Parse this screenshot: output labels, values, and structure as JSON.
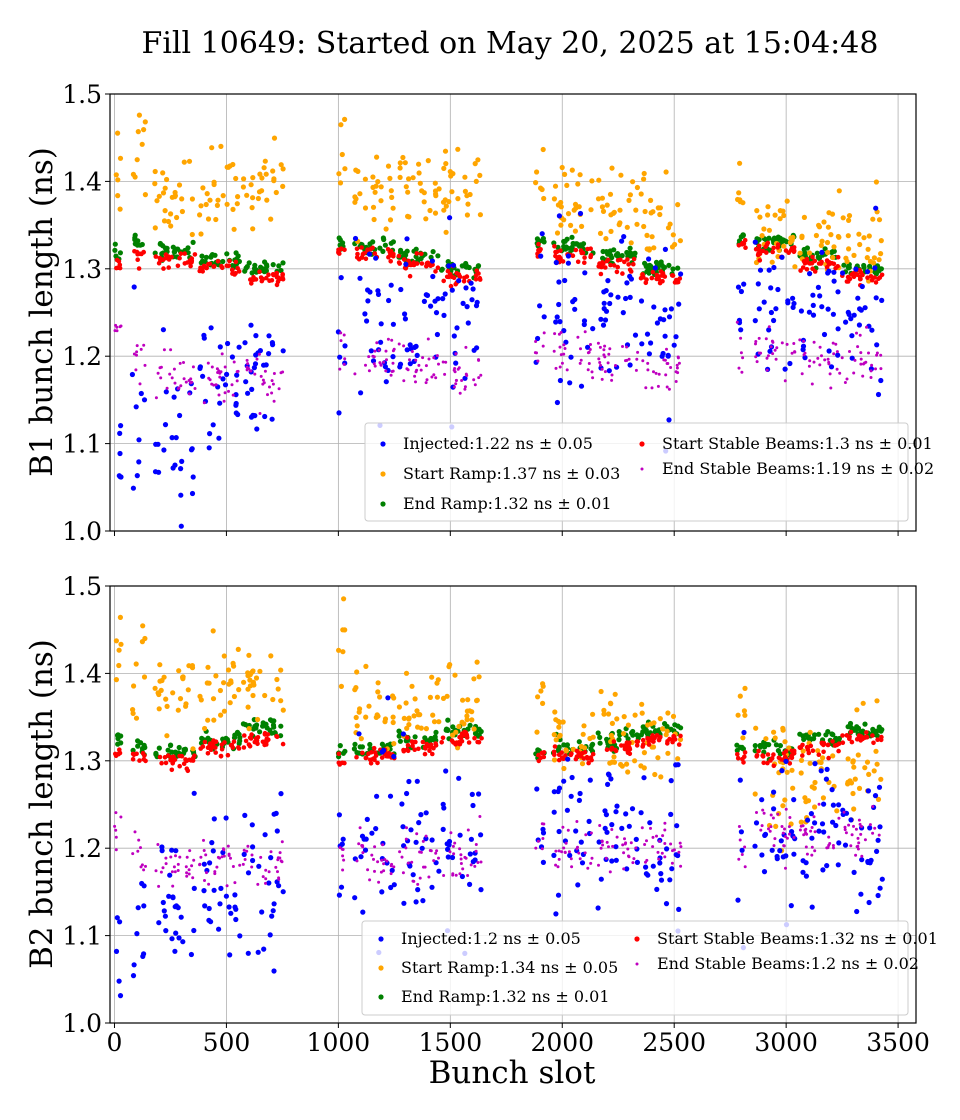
{
  "title": "Fill 10649: Started on May 20, 2025 at 15:04:48",
  "colors": {
    "injected": "#0000ff",
    "start_ramp": "#ffa500",
    "end_ramp": "#008000",
    "start_stable": "#ff0000",
    "end_stable": "#bf00bf",
    "grid": "#b0b0b0",
    "frame": "#000000"
  },
  "chart_data": [
    {
      "type": "scatter",
      "ylabel": "B1 bunch length (ns)",
      "xlabel": "",
      "xlim": [
        -20,
        3580
      ],
      "ylim": [
        1.0,
        1.5
      ],
      "xticks": [
        0,
        500,
        1000,
        1500,
        2000,
        2500,
        3000,
        3500
      ],
      "xtick_labels_shown": false,
      "yticks": [
        "1.0",
        "1.1",
        "1.2",
        "1.3",
        "1.4",
        "1.5"
      ],
      "grid": true,
      "legend_position": "lower-right",
      "series": [
        {
          "key": "injected",
          "name": "Injected:1.22 ns ± 0.05",
          "mean": 1.22,
          "std": 0.05
        },
        {
          "key": "start_ramp",
          "name": "Start Ramp:1.37 ns ± 0.03",
          "mean": 1.37,
          "std": 0.03
        },
        {
          "key": "end_ramp",
          "name": "End Ramp:1.32 ns ± 0.01",
          "mean": 1.32,
          "std": 0.01
        },
        {
          "key": "start_stable",
          "name": "Start Stable Beams:1.3 ns ± 0.01",
          "mean": 1.3,
          "std": 0.01
        },
        {
          "key": "end_stable",
          "name": "End Stable Beams:1.19 ns ± 0.02",
          "mean": 1.19,
          "std": 0.02
        }
      ],
      "trains": [
        {
          "x0": 0,
          "x1": 30,
          "injected": 1.09,
          "start_ramp": 1.43,
          "end_ramp": 1.315,
          "start_stable": 1.305,
          "end_stable": 1.23
        },
        {
          "x0": 80,
          "x1": 140,
          "injected": 1.13,
          "start_ramp": 1.42,
          "end_ramp": 1.33,
          "start_stable": 1.315,
          "end_stable": 1.2
        },
        {
          "x0": 180,
          "x1": 360,
          "injected": 1.12,
          "start_ramp": 1.38,
          "end_ramp": 1.32,
          "start_stable": 1.31,
          "end_stable": 1.18
        },
        {
          "x0": 380,
          "x1": 560,
          "injected": 1.16,
          "start_ramp": 1.39,
          "end_ramp": 1.31,
          "start_stable": 1.3,
          "end_stable": 1.175
        },
        {
          "x0": 575,
          "x1": 755,
          "injected": 1.19,
          "start_ramp": 1.4,
          "end_ramp": 1.3,
          "start_stable": 1.29,
          "end_stable": 1.18
        },
        {
          "x0": 1000,
          "x1": 1030,
          "injected": 1.25,
          "start_ramp": 1.43,
          "end_ramp": 1.33,
          "start_stable": 1.32,
          "end_stable": 1.21
        },
        {
          "x0": 1070,
          "x1": 1250,
          "injected": 1.23,
          "start_ramp": 1.39,
          "end_ramp": 1.325,
          "start_stable": 1.315,
          "end_stable": 1.195
        },
        {
          "x0": 1270,
          "x1": 1450,
          "injected": 1.24,
          "start_ramp": 1.39,
          "end_ramp": 1.315,
          "start_stable": 1.305,
          "end_stable": 1.19
        },
        {
          "x0": 1460,
          "x1": 1640,
          "injected": 1.24,
          "start_ramp": 1.39,
          "end_ramp": 1.3,
          "start_stable": 1.29,
          "end_stable": 1.18
        },
        {
          "x0": 1880,
          "x1": 1920,
          "injected": 1.24,
          "start_ramp": 1.4,
          "end_ramp": 1.33,
          "start_stable": 1.32,
          "end_stable": 1.21
        },
        {
          "x0": 1960,
          "x1": 2140,
          "injected": 1.25,
          "start_ramp": 1.37,
          "end_ramp": 1.325,
          "start_stable": 1.315,
          "end_stable": 1.2
        },
        {
          "x0": 2160,
          "x1": 2340,
          "injected": 1.25,
          "start_ramp": 1.37,
          "end_ramp": 1.315,
          "start_stable": 1.305,
          "end_stable": 1.195
        },
        {
          "x0": 2350,
          "x1": 2530,
          "injected": 1.24,
          "start_ramp": 1.36,
          "end_ramp": 1.3,
          "start_stable": 1.29,
          "end_stable": 1.185
        },
        {
          "x0": 2780,
          "x1": 2820,
          "injected": 1.27,
          "start_ramp": 1.37,
          "end_ramp": 1.335,
          "start_stable": 1.325,
          "end_stable": 1.215
        },
        {
          "x0": 2860,
          "x1": 3040,
          "injected": 1.25,
          "start_ramp": 1.34,
          "end_ramp": 1.33,
          "start_stable": 1.32,
          "end_stable": 1.21
        },
        {
          "x0": 3060,
          "x1": 3240,
          "injected": 1.26,
          "start_ramp": 1.335,
          "end_ramp": 1.315,
          "start_stable": 1.305,
          "end_stable": 1.2
        },
        {
          "x0": 3250,
          "x1": 3430,
          "injected": 1.25,
          "start_ramp": 1.33,
          "end_ramp": 1.3,
          "start_stable": 1.29,
          "end_stable": 1.195
        }
      ]
    },
    {
      "type": "scatter",
      "ylabel": "B2 bunch length (ns)",
      "xlabel": "Bunch slot",
      "xlim": [
        -20,
        3580
      ],
      "ylim": [
        1.0,
        1.5
      ],
      "xticks": [
        0,
        500,
        1000,
        1500,
        2000,
        2500,
        3000,
        3500
      ],
      "xtick_labels_shown": true,
      "yticks": [
        "1.0",
        "1.1",
        "1.2",
        "1.3",
        "1.4",
        "1.5"
      ],
      "grid": true,
      "legend_position": "lower-right",
      "series": [
        {
          "key": "injected",
          "name": "Injected:1.2 ns ± 0.05",
          "mean": 1.2,
          "std": 0.05
        },
        {
          "key": "start_ramp",
          "name": "Start Ramp:1.34 ns ± 0.05",
          "mean": 1.34,
          "std": 0.05
        },
        {
          "key": "end_ramp",
          "name": "End Ramp:1.32 ns ± 0.01",
          "mean": 1.32,
          "std": 0.01
        },
        {
          "key": "start_stable",
          "name": "Start Stable Beams:1.32 ns ± 0.01",
          "mean": 1.32,
          "std": 0.01
        },
        {
          "key": "end_stable",
          "name": "End Stable Beams:1.2 ns ± 0.02",
          "mean": 1.2,
          "std": 0.02
        }
      ],
      "trains": [
        {
          "x0": 0,
          "x1": 30,
          "injected": 1.08,
          "start_ramp": 1.41,
          "end_ramp": 1.325,
          "start_stable": 1.31,
          "end_stable": 1.23
        },
        {
          "x0": 80,
          "x1": 140,
          "injected": 1.12,
          "start_ramp": 1.41,
          "end_ramp": 1.315,
          "start_stable": 1.305,
          "end_stable": 1.19
        },
        {
          "x0": 180,
          "x1": 360,
          "injected": 1.14,
          "start_ramp": 1.37,
          "end_ramp": 1.31,
          "start_stable": 1.3,
          "end_stable": 1.18
        },
        {
          "x0": 380,
          "x1": 560,
          "injected": 1.15,
          "start_ramp": 1.38,
          "end_ramp": 1.325,
          "start_stable": 1.315,
          "end_stable": 1.185
        },
        {
          "x0": 575,
          "x1": 755,
          "injected": 1.17,
          "start_ramp": 1.39,
          "end_ramp": 1.34,
          "start_stable": 1.325,
          "end_stable": 1.18
        },
        {
          "x0": 1000,
          "x1": 1030,
          "injected": 1.2,
          "start_ramp": 1.43,
          "end_ramp": 1.31,
          "start_stable": 1.3,
          "end_stable": 1.19
        },
        {
          "x0": 1070,
          "x1": 1250,
          "injected": 1.2,
          "start_ramp": 1.36,
          "end_ramp": 1.315,
          "start_stable": 1.305,
          "end_stable": 1.19
        },
        {
          "x0": 1270,
          "x1": 1450,
          "injected": 1.2,
          "start_ramp": 1.36,
          "end_ramp": 1.325,
          "start_stable": 1.315,
          "end_stable": 1.19
        },
        {
          "x0": 1460,
          "x1": 1640,
          "injected": 1.2,
          "start_ramp": 1.36,
          "end_ramp": 1.335,
          "start_stable": 1.325,
          "end_stable": 1.19
        },
        {
          "x0": 1880,
          "x1": 1920,
          "injected": 1.21,
          "start_ramp": 1.37,
          "end_ramp": 1.31,
          "start_stable": 1.305,
          "end_stable": 1.21
        },
        {
          "x0": 1960,
          "x1": 2140,
          "injected": 1.22,
          "start_ramp": 1.33,
          "end_ramp": 1.315,
          "start_stable": 1.305,
          "end_stable": 1.2
        },
        {
          "x0": 2160,
          "x1": 2340,
          "injected": 1.22,
          "start_ramp": 1.33,
          "end_ramp": 1.325,
          "start_stable": 1.315,
          "end_stable": 1.2
        },
        {
          "x0": 2350,
          "x1": 2530,
          "injected": 1.22,
          "start_ramp": 1.33,
          "end_ramp": 1.335,
          "start_stable": 1.325,
          "end_stable": 1.2
        },
        {
          "x0": 2780,
          "x1": 2820,
          "injected": 1.22,
          "start_ramp": 1.35,
          "end_ramp": 1.315,
          "start_stable": 1.305,
          "end_stable": 1.21
        },
        {
          "x0": 2860,
          "x1": 3040,
          "injected": 1.21,
          "start_ramp": 1.28,
          "end_ramp": 1.315,
          "start_stable": 1.305,
          "end_stable": 1.22
        },
        {
          "x0": 3060,
          "x1": 3240,
          "injected": 1.22,
          "start_ramp": 1.28,
          "end_ramp": 1.325,
          "start_stable": 1.315,
          "end_stable": 1.22
        },
        {
          "x0": 3250,
          "x1": 3430,
          "injected": 1.21,
          "start_ramp": 1.28,
          "end_ramp": 1.335,
          "start_stable": 1.325,
          "end_stable": 1.215
        }
      ]
    }
  ]
}
